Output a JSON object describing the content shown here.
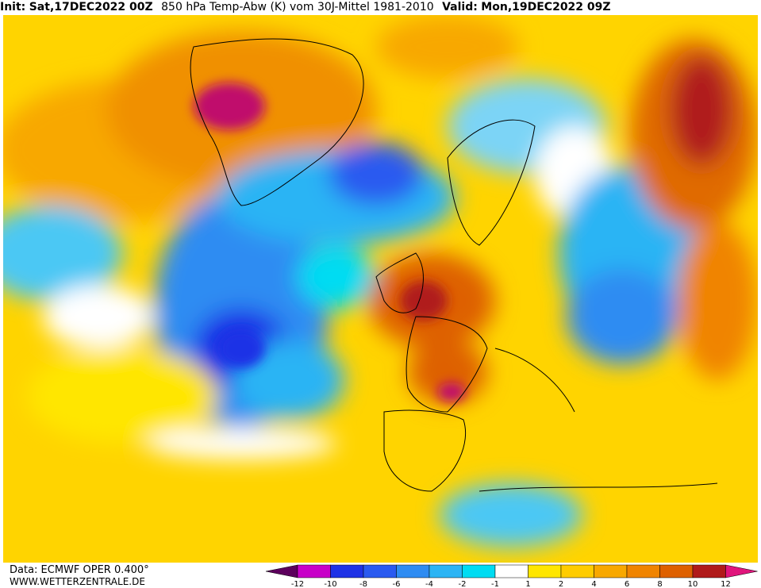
{
  "header": {
    "init_label": "Init:",
    "init": "Sat,17DEC2022 00Z",
    "title": "850 hPa Temp-Abw (K) vom 30J-Mittel 1981-2010",
    "valid_label": "Valid:",
    "valid": "Mon,19DEC2022 09Z"
  },
  "footer": {
    "data_source": "Data: ECMWF OPER 0.400°",
    "website": "WWW.WETTERZENTRALE.DE"
  },
  "legend": {
    "ticks": [
      -12,
      -10,
      -8,
      -6,
      -4,
      -2,
      -1,
      1,
      2,
      4,
      6,
      8,
      10,
      12
    ],
    "colors": [
      "#5c005c",
      "#c800c8",
      "#1e32e6",
      "#2a5af0",
      "#2f8cf2",
      "#2cb4f4",
      "#00dcf2",
      "#ffffff",
      "#ffe600",
      "#ffcc00",
      "#f8a800",
      "#f08400",
      "#de6000",
      "#b01a1a",
      "#e0157c"
    ]
  }
}
